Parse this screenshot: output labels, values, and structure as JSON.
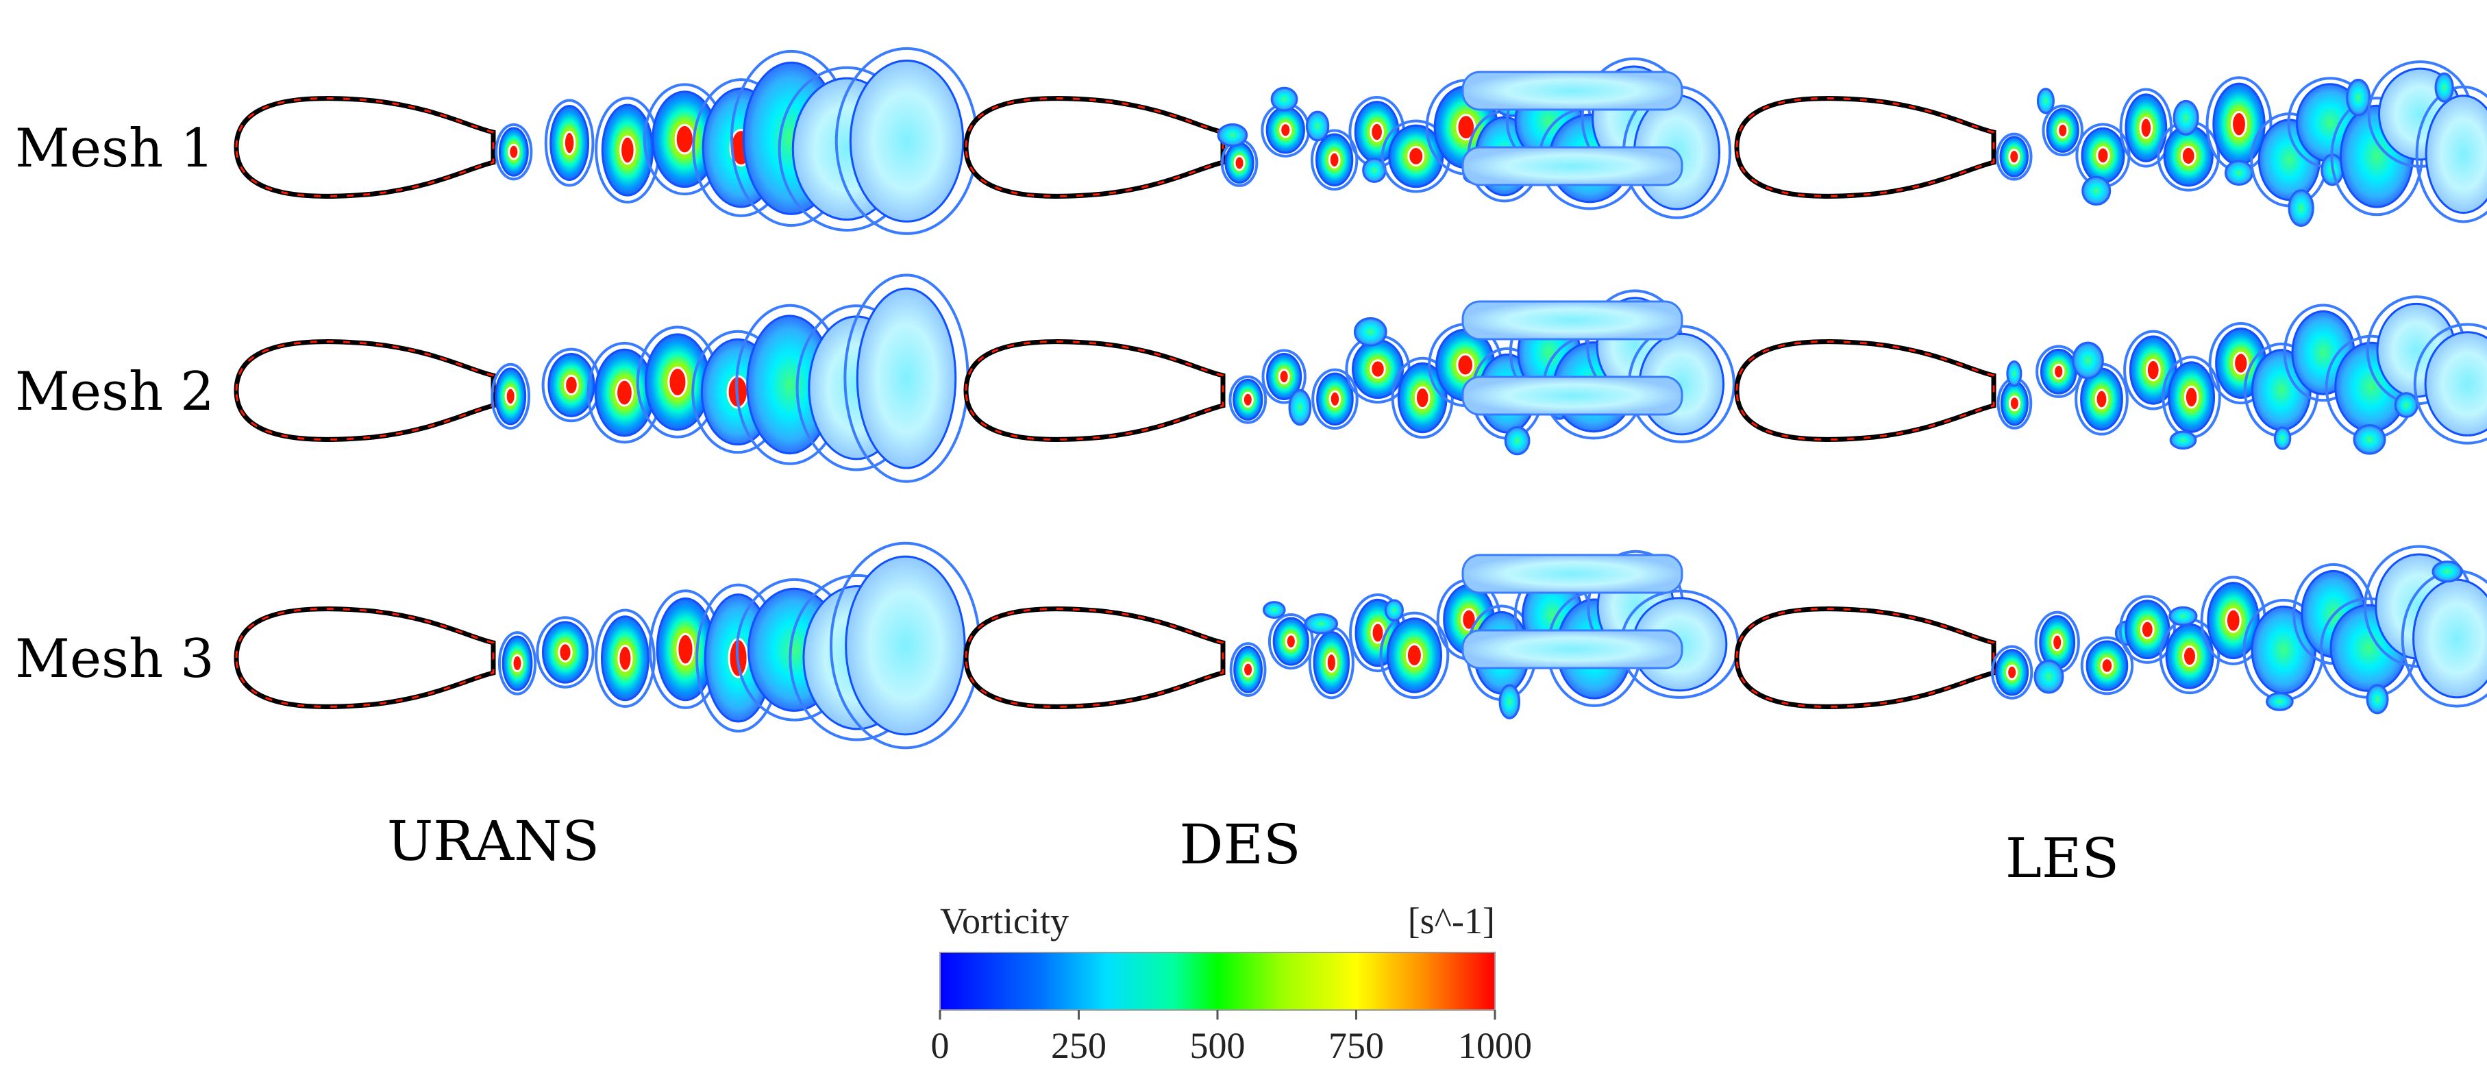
{
  "rows": [
    "Mesh 1",
    "Mesh 2",
    "Mesh 3"
  ],
  "columns": [
    "URANS",
    "DES",
    "LES"
  ],
  "colorbar": {
    "variable": "Vorticity",
    "unit": "[s^-1]",
    "ticks": [
      "0",
      "250",
      "500",
      "750",
      "1000"
    ],
    "range": [
      0,
      1000
    ],
    "colors": [
      "#0000ff",
      "#00a0ff",
      "#00ffff",
      "#00ff00",
      "#ffff00",
      "#ff8000",
      "#ff0000"
    ]
  }
}
